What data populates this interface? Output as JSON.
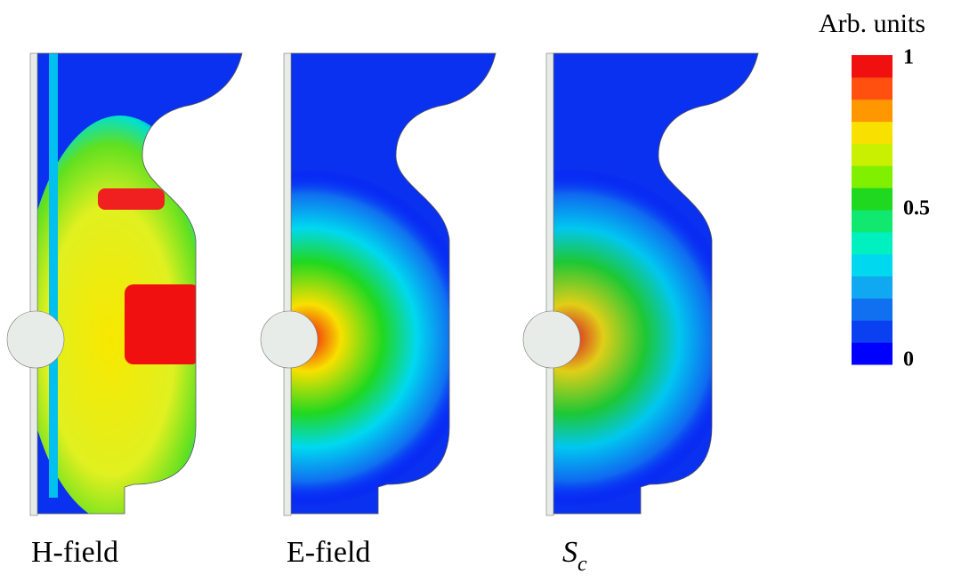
{
  "colorbar": {
    "title": "Arb. units",
    "lim": [
      0,
      1
    ],
    "ticks": [
      0,
      0.5,
      1
    ],
    "colors": [
      "#0000ff",
      "#0a40f0",
      "#1070f0",
      "#10a8f0",
      "#00d8f0",
      "#00f0c0",
      "#10e870",
      "#20d820",
      "#80f000",
      "#c8f000",
      "#f8e000",
      "#ff9800",
      "#ff5010",
      "#f01010"
    ]
  },
  "panels": [
    {
      "label": "H-field"
    },
    {
      "label": "E-field"
    },
    {
      "label": {
        "base": "S",
        "sub": "c"
      }
    }
  ]
}
